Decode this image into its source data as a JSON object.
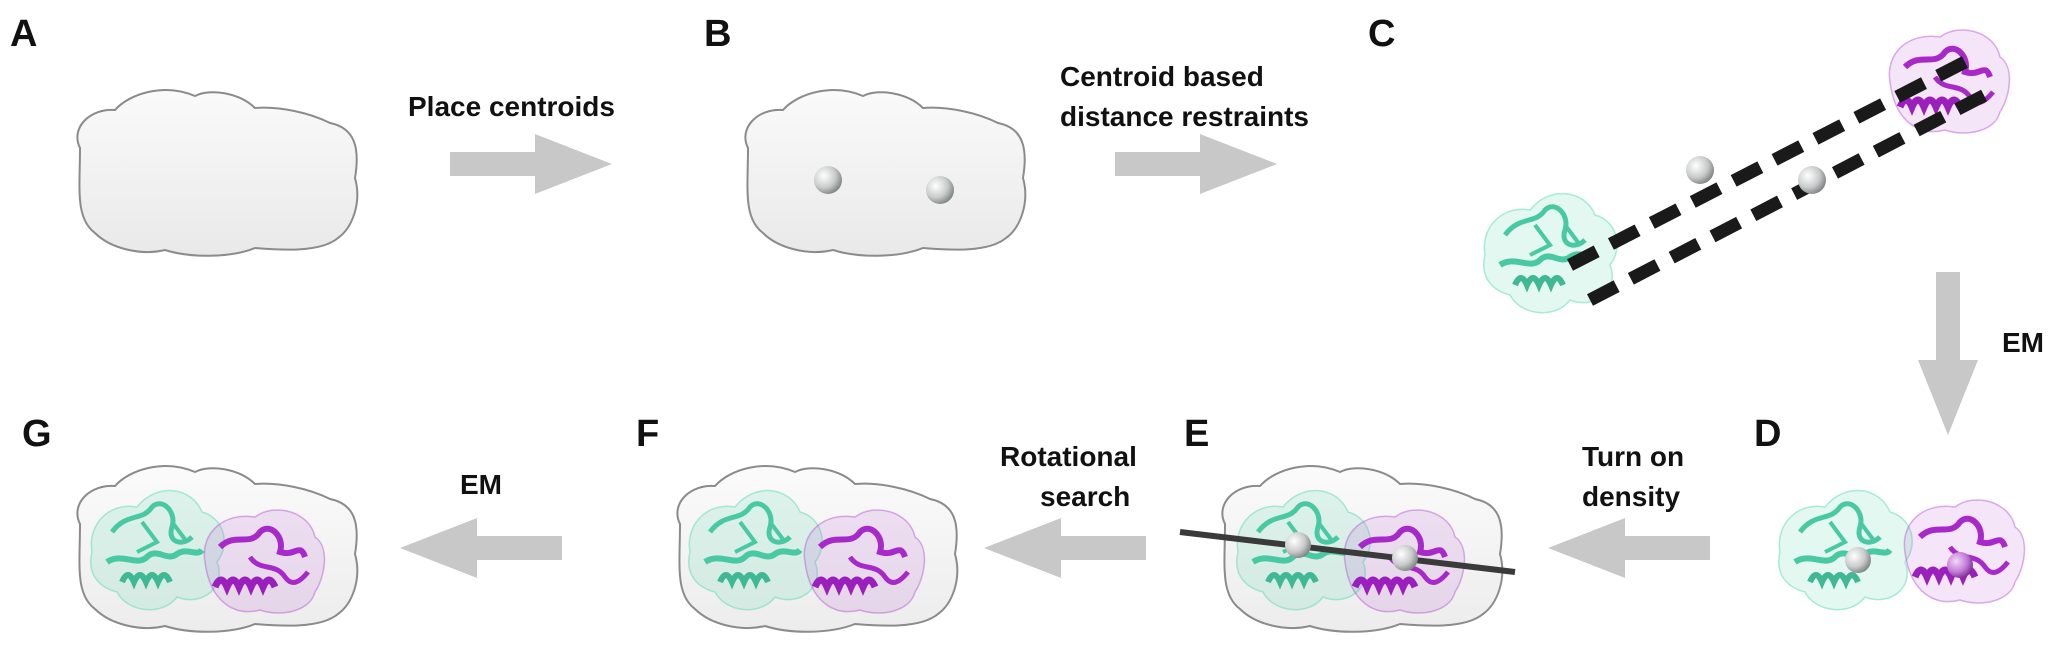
{
  "panels": {
    "A": "A",
    "B": "B",
    "C": "C",
    "D": "D",
    "E": "E",
    "F": "F",
    "G": "G"
  },
  "steps": {
    "place_centroids": "Place centroids",
    "centroid_line1": "Centroid based",
    "centroid_line2": "distance restraints",
    "em_right": "EM",
    "turn_on_line1": "Turn on",
    "turn_on_line2": "density",
    "rotational_line1": "Rotational",
    "rotational_line2": "search",
    "em_left": "EM"
  },
  "colors": {
    "density_fill": "#f2f3f2",
    "density_edge": "#8a8c8a",
    "arrow": "#c8c8c8",
    "domain_cyan": "#5fd9b4",
    "domain_magenta": "#a829c9",
    "restraint": "#1a1a1a"
  }
}
